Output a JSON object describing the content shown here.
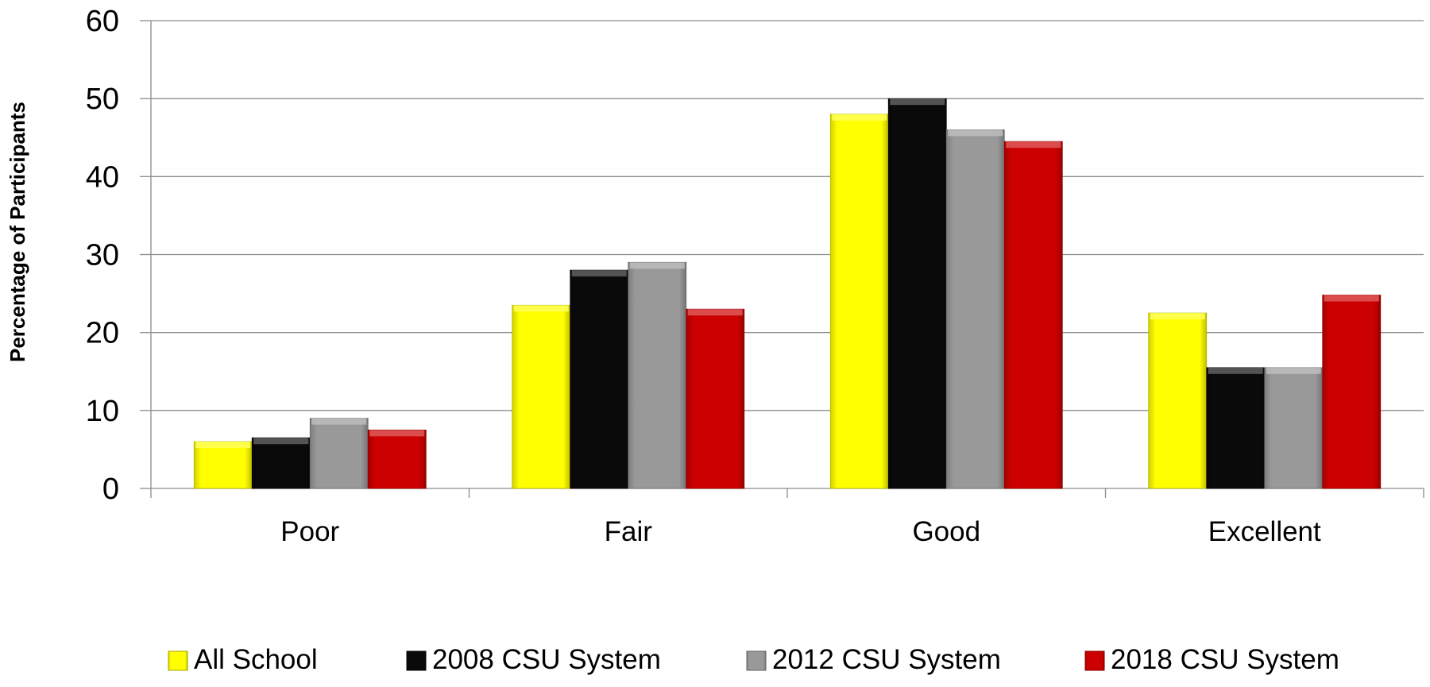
{
  "chart_data": {
    "type": "bar",
    "title": "",
    "xlabel": "",
    "ylabel": "Percentage of Participants",
    "ylim": [
      0,
      60
    ],
    "yticks": [
      0,
      10,
      20,
      30,
      40,
      50,
      60
    ],
    "grid": true,
    "legend_position": "bottom",
    "categories": [
      "Poor",
      "Fair",
      "Good",
      "Excellent"
    ],
    "series": [
      {
        "name": "All School",
        "color": "#ffff00",
        "values": [
          6,
          23.5,
          48,
          22.5
        ]
      },
      {
        "name": "2008 CSU System",
        "color": "#0a0a0a",
        "values": [
          6.5,
          28,
          50,
          15.5
        ]
      },
      {
        "name": "2012 CSU System",
        "color": "#999999",
        "values": [
          9,
          29,
          46,
          15.5
        ]
      },
      {
        "name": "2018 CSU System",
        "color": "#cc0000",
        "values": [
          7.5,
          23,
          44.5,
          24.8
        ]
      }
    ]
  }
}
